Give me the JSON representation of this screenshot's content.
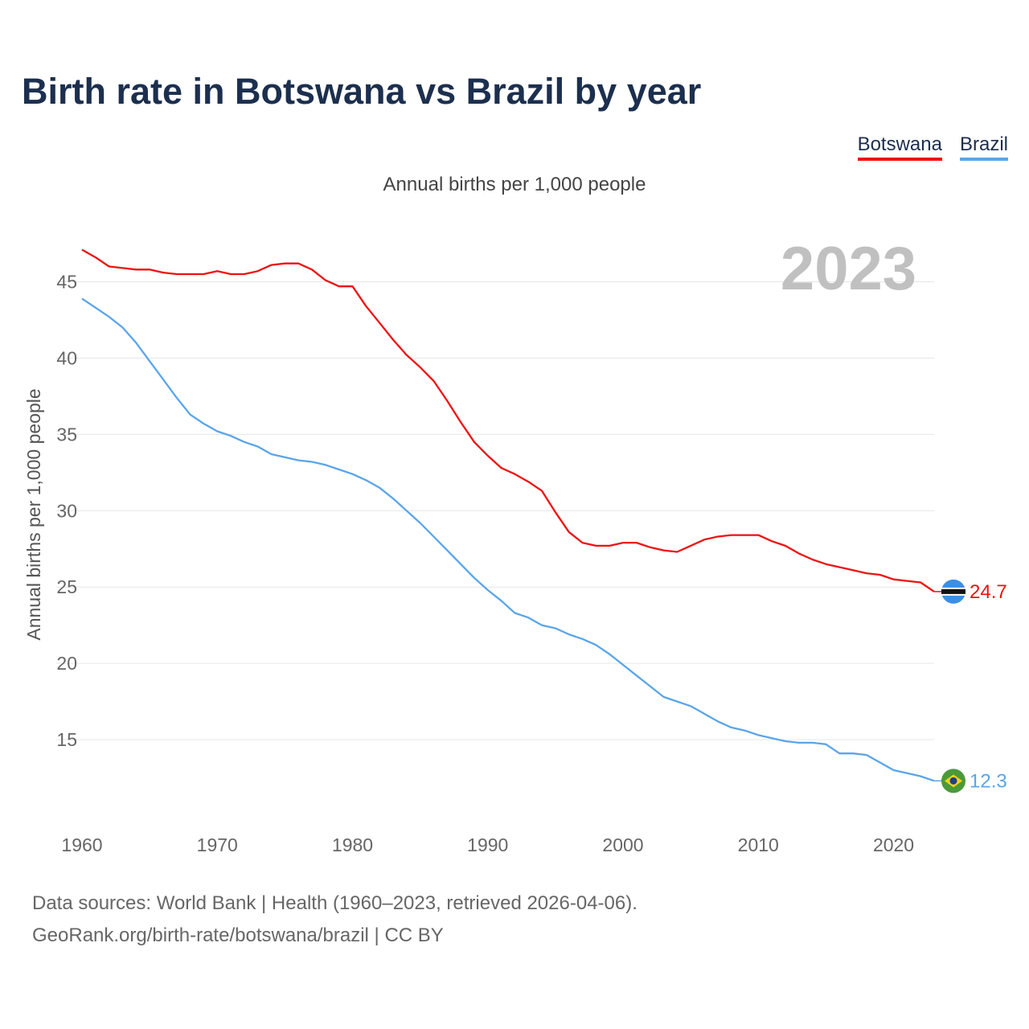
{
  "title": "Birth rate in Botswana vs Brazil by year",
  "subtitle": "Annual births per 1,000 people",
  "legend": [
    {
      "label": "Botswana",
      "color": "#ee1111"
    },
    {
      "label": "Brazil",
      "color": "#5aa5e8"
    }
  ],
  "footer": {
    "line1": "Data sources: World Bank | Health (1960–2023, retrieved 2026-04-06).",
    "line2": "GeoRank.org/birth-rate/botswana/brazil | CC BY"
  },
  "chart_data": {
    "type": "line",
    "title": "Birth rate in Botswana vs Brazil by year",
    "ylabel": "Annual births per 1,000 people",
    "xlabel": "",
    "year_label": "2023",
    "xlim": [
      1960,
      2023
    ],
    "ylim": [
      10,
      47.5
    ],
    "xticks": [
      1960,
      1970,
      1980,
      1990,
      2000,
      2010,
      2020
    ],
    "yticks": [
      15,
      20,
      25,
      30,
      35,
      40,
      45
    ],
    "grid": true,
    "x": [
      1960,
      1961,
      1962,
      1963,
      1964,
      1965,
      1966,
      1967,
      1968,
      1969,
      1970,
      1971,
      1972,
      1973,
      1974,
      1975,
      1976,
      1977,
      1978,
      1979,
      1980,
      1981,
      1982,
      1983,
      1984,
      1985,
      1986,
      1987,
      1988,
      1989,
      1990,
      1991,
      1992,
      1993,
      1994,
      1995,
      1996,
      1997,
      1998,
      1999,
      2000,
      2001,
      2002,
      2003,
      2004,
      2005,
      2006,
      2007,
      2008,
      2009,
      2010,
      2011,
      2012,
      2013,
      2014,
      2015,
      2016,
      2017,
      2018,
      2019,
      2020,
      2021,
      2022,
      2023
    ],
    "series": [
      {
        "name": "Botswana",
        "color": "#ee1111",
        "end_label": "24.7",
        "values": [
          47.1,
          46.6,
          46.0,
          45.9,
          45.8,
          45.8,
          45.6,
          45.5,
          45.5,
          45.5,
          45.7,
          45.5,
          45.5,
          45.7,
          46.1,
          46.2,
          46.2,
          45.8,
          45.1,
          44.7,
          44.7,
          43.4,
          42.3,
          41.2,
          40.2,
          39.4,
          38.5,
          37.2,
          35.8,
          34.5,
          33.6,
          32.8,
          32.4,
          31.9,
          31.3,
          29.9,
          28.6,
          27.9,
          27.7,
          27.7,
          27.9,
          27.9,
          27.6,
          27.4,
          27.3,
          27.7,
          28.1,
          28.3,
          28.4,
          28.4,
          28.4,
          28.0,
          27.7,
          27.2,
          26.8,
          26.5,
          26.3,
          26.1,
          25.9,
          25.8,
          25.5,
          25.4,
          25.3,
          24.7
        ]
      },
      {
        "name": "Brazil",
        "color": "#5aa5e8",
        "end_label": "12.3",
        "values": [
          43.9,
          43.3,
          42.7,
          42.0,
          41.0,
          39.8,
          38.6,
          37.4,
          36.3,
          35.7,
          35.2,
          34.9,
          34.5,
          34.2,
          33.7,
          33.5,
          33.3,
          33.2,
          33.0,
          32.7,
          32.4,
          32.0,
          31.5,
          30.8,
          30.0,
          29.2,
          28.3,
          27.4,
          26.5,
          25.6,
          24.8,
          24.1,
          23.3,
          23.0,
          22.5,
          22.3,
          21.9,
          21.6,
          21.2,
          20.6,
          19.9,
          19.2,
          18.5,
          17.8,
          17.5,
          17.2,
          16.7,
          16.2,
          15.8,
          15.6,
          15.3,
          15.1,
          14.9,
          14.8,
          14.8,
          14.7,
          14.1,
          14.1,
          14.0,
          13.5,
          13.0,
          12.8,
          12.6,
          12.3
        ]
      }
    ]
  }
}
